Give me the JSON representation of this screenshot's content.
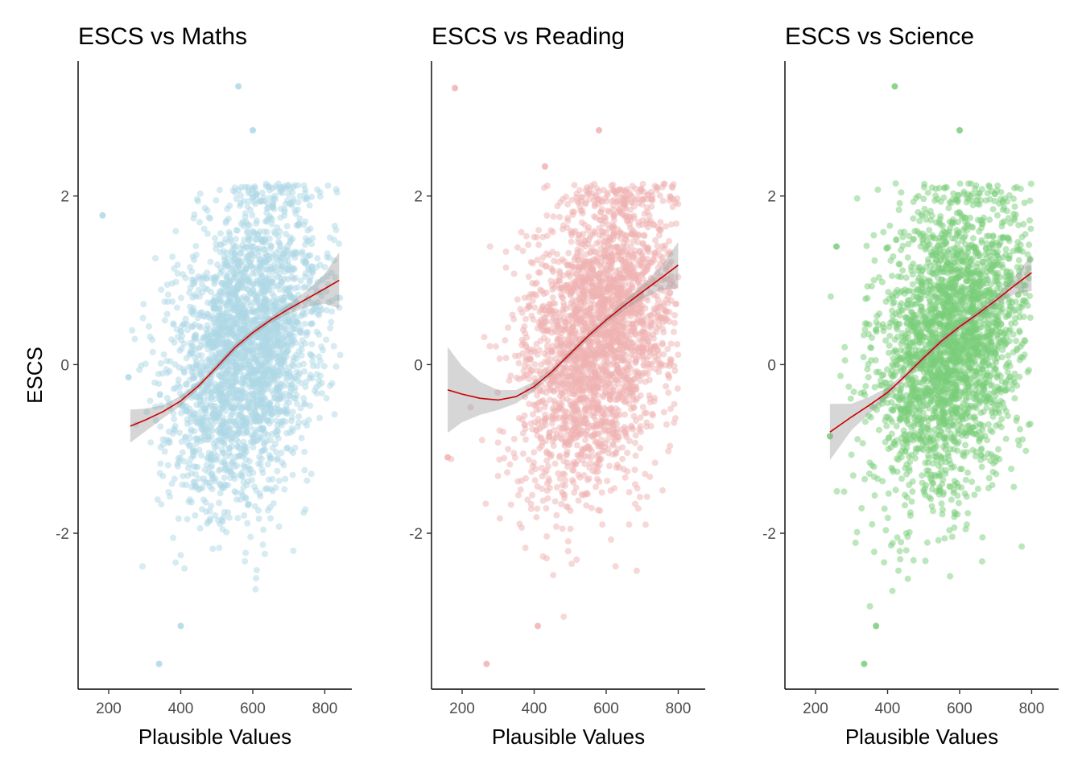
{
  "chart_data": [
    {
      "type": "scatter",
      "title": "ESCS vs Maths",
      "xlabel": "Plausible Values",
      "ylabel": "ESCS",
      "xlim": [
        115,
        875
      ],
      "ylim": [
        -3.85,
        3.6
      ],
      "xticks": [
        200,
        400,
        600,
        800
      ],
      "yticks": [
        -2,
        0,
        2
      ],
      "point_color": "#ADD8E6",
      "smooth_color": "#CC0000",
      "x_range": [
        255,
        845
      ],
      "smooth": {
        "x": [
          260,
          300,
          350,
          400,
          450,
          500,
          550,
          600,
          650,
          700,
          750,
          800,
          840
        ],
        "y": [
          -0.73,
          -0.66,
          -0.56,
          -0.43,
          -0.25,
          -0.03,
          0.2,
          0.38,
          0.53,
          0.66,
          0.78,
          0.9,
          1.0
        ],
        "se": [
          0.1,
          0.07,
          0.04,
          0.03,
          0.02,
          0.02,
          0.02,
          0.02,
          0.02,
          0.03,
          0.05,
          0.09,
          0.17
        ]
      },
      "extreme_points": [
        [
          560,
          3.3
        ],
        [
          600,
          2.78
        ],
        [
          340,
          -3.55
        ],
        [
          400,
          -3.1
        ],
        [
          183,
          1.77
        ],
        [
          255,
          -0.15
        ]
      ]
    },
    {
      "type": "scatter",
      "title": "ESCS vs Reading",
      "xlabel": "Plausible Values",
      "ylabel": "",
      "xlim": [
        115,
        875
      ],
      "ylim": [
        -3.85,
        3.6
      ],
      "xticks": [
        200,
        400,
        600,
        800
      ],
      "yticks": [
        -2,
        0,
        2
      ],
      "point_color": "#F0B2B2",
      "smooth_color": "#CC0000",
      "x_range": [
        160,
        800
      ],
      "smooth": {
        "x": [
          160,
          200,
          250,
          300,
          350,
          400,
          450,
          500,
          550,
          600,
          650,
          700,
          750,
          800
        ],
        "y": [
          -0.3,
          -0.35,
          -0.4,
          -0.42,
          -0.38,
          -0.26,
          -0.08,
          0.13,
          0.34,
          0.53,
          0.7,
          0.86,
          1.02,
          1.18
        ],
        "se": [
          0.26,
          0.17,
          0.1,
          0.06,
          0.04,
          0.03,
          0.02,
          0.02,
          0.02,
          0.02,
          0.03,
          0.04,
          0.07,
          0.14
        ]
      },
      "extreme_points": [
        [
          180,
          3.28
        ],
        [
          580,
          2.78
        ],
        [
          268,
          -3.55
        ],
        [
          410,
          -3.1
        ],
        [
          430,
          2.35
        ],
        [
          160,
          -1.1
        ]
      ]
    },
    {
      "type": "scatter",
      "title": "ESCS vs Science",
      "xlabel": "Plausible Values",
      "ylabel": "",
      "xlim": [
        115,
        875
      ],
      "ylim": [
        -3.85,
        3.6
      ],
      "xticks": [
        200,
        400,
        600,
        800
      ],
      "yticks": [
        -2,
        0,
        2
      ],
      "point_color": "#7ACD7A",
      "smooth_color": "#CC0000",
      "x_range": [
        240,
        800
      ],
      "smooth": {
        "x": [
          240,
          300,
          350,
          400,
          450,
          500,
          550,
          600,
          650,
          700,
          750,
          800
        ],
        "y": [
          -0.8,
          -0.62,
          -0.48,
          -0.33,
          -0.13,
          0.08,
          0.28,
          0.45,
          0.6,
          0.76,
          0.93,
          1.09
        ],
        "se": [
          0.17,
          0.08,
          0.05,
          0.03,
          0.02,
          0.02,
          0.02,
          0.02,
          0.02,
          0.03,
          0.05,
          0.11
        ]
      },
      "extreme_points": [
        [
          420,
          3.3
        ],
        [
          600,
          2.78
        ],
        [
          335,
          -3.55
        ],
        [
          368,
          -3.1
        ],
        [
          258,
          1.4
        ],
        [
          240,
          -0.85
        ]
      ]
    }
  ]
}
